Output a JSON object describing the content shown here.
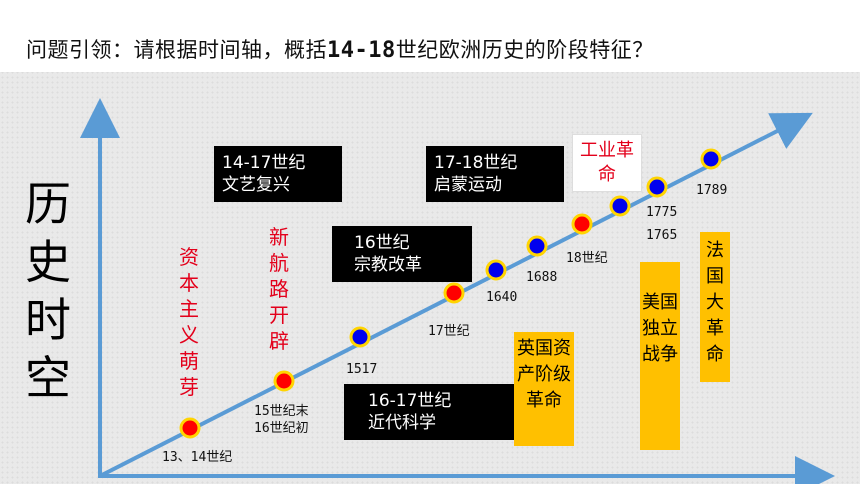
{
  "header": {
    "prefix": "问题引领：请根据时间轴，概括",
    "range": "14-18",
    "suffix": "世纪欧洲历史的阶段特征？"
  },
  "side_title": "历史时空",
  "points": [
    {
      "label": "13、14世纪",
      "color": "#ff0000"
    },
    {
      "label": "15世纪末 16世纪初",
      "color": "#ff0000"
    },
    {
      "label": "1517",
      "color": "#0000ee"
    },
    {
      "label": "17世纪",
      "color": "#ff0000"
    },
    {
      "label": "1640",
      "color": "#0000ee"
    },
    {
      "label": "1688",
      "color": "#0000ee"
    },
    {
      "label": "18世纪",
      "color": "#ff0000"
    },
    {
      "label": "1765",
      "color": "#0000ee"
    },
    {
      "label": "1775",
      "color": "#0000ee"
    },
    {
      "label": "1789",
      "color": "#0000ee"
    }
  ],
  "boxes": {
    "renaissance": {
      "period": "14-17世纪",
      "name": "文艺复兴"
    },
    "enlightenment": {
      "period": "17-18世纪",
      "name": "启蒙运动"
    },
    "reformation": {
      "period": "16世纪",
      "name": "宗教改革"
    },
    "science": {
      "period": "16-17世纪",
      "name": "近代科学"
    },
    "industrial": "工业革命",
    "capitalism": "资本主义萌芽",
    "new_routes": "新航路开辟",
    "english_revolution": "英国资产阶级革命",
    "american_war": "美国独立战争",
    "french_revolution": "法国大革命"
  },
  "colors": {
    "axis": "#5a9bd5",
    "red": "#e3001b",
    "yellow": "#ffc000"
  }
}
